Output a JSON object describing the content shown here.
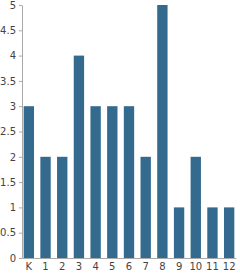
{
  "chart_data": {
    "type": "bar",
    "categories": [
      "K",
      "1",
      "2",
      "3",
      "4",
      "5",
      "6",
      "7",
      "8",
      "9",
      "10",
      "11",
      "12"
    ],
    "values": [
      3,
      2,
      2,
      4,
      3,
      3,
      3,
      2,
      5,
      1,
      2,
      1,
      1
    ],
    "color": "#336a8e",
    "ylim": [
      0,
      5
    ],
    "yticks": [
      0,
      0.5,
      1,
      1.5,
      2,
      2.5,
      3,
      3.5,
      4,
      4.5,
      5
    ],
    "grid": false
  }
}
